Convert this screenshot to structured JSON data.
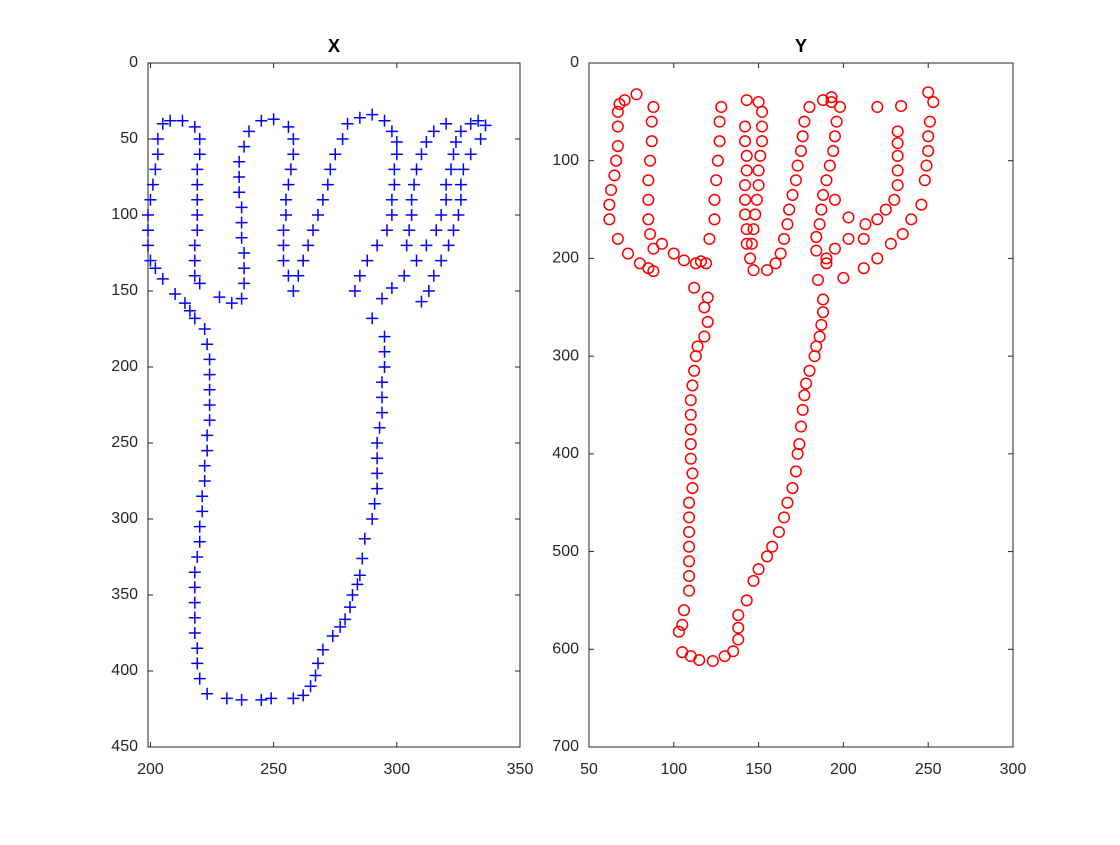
{
  "chart_data": [
    {
      "type": "scatter",
      "title": "X",
      "marker": "+",
      "color": "#0000ff",
      "y_reverse": true,
      "xlim": [
        199,
        350
      ],
      "xticks": [
        200,
        250,
        300,
        350
      ],
      "ylim": [
        0,
        450
      ],
      "yticks": [
        0,
        50,
        100,
        150,
        200,
        250,
        300,
        350,
        400,
        450
      ],
      "x": [
        223,
        231,
        237,
        245,
        249,
        258,
        262,
        265,
        267,
        268,
        270,
        274,
        277,
        279,
        281,
        282,
        284,
        285,
        286,
        287,
        290,
        291,
        292,
        292,
        292,
        292,
        293,
        294,
        294,
        294,
        295,
        295,
        295,
        290,
        283,
        285,
        288,
        292,
        296,
        298,
        298,
        299,
        299,
        300,
        300,
        298,
        295,
        290,
        285,
        280,
        278,
        275,
        273,
        272,
        270,
        268,
        266,
        264,
        262,
        260,
        258,
        256,
        254,
        254,
        254,
        255,
        255,
        256,
        257,
        258,
        258,
        256,
        250,
        245,
        240,
        238,
        236,
        236,
        236,
        237,
        237,
        237,
        238,
        238,
        238,
        237,
        233,
        228,
        220,
        218,
        218,
        218,
        219,
        219,
        219,
        219,
        219,
        220,
        220,
        218,
        213,
        208,
        205,
        203,
        203,
        202,
        201,
        200,
        199,
        199,
        199,
        200,
        202,
        205,
        210,
        214,
        216,
        218,
        222,
        223,
        224,
        224,
        224,
        224,
        224,
        223,
        223,
        222,
        222,
        221,
        221,
        220,
        220,
        219,
        218,
        218,
        218,
        218,
        218,
        219,
        219,
        220,
        294,
        298,
        303,
        308,
        312,
        316,
        318,
        320,
        320,
        322,
        323,
        324,
        326,
        330,
        333,
        336,
        334,
        330,
        327,
        326,
        326,
        325,
        323,
        321,
        318,
        315,
        313,
        310,
        306,
        306,
        307,
        308,
        310,
        312,
        315,
        320,
        305,
        304
      ],
      "values": [
        415,
        418,
        419,
        419,
        418,
        418,
        416,
        410,
        403,
        395,
        386,
        377,
        371,
        366,
        358,
        350,
        343,
        337,
        326,
        313,
        300,
        290,
        280,
        270,
        260,
        250,
        240,
        230,
        220,
        210,
        200,
        190,
        180,
        168,
        150,
        140,
        130,
        120,
        110,
        100,
        90,
        80,
        70,
        60,
        52,
        45,
        38,
        34,
        36,
        40,
        50,
        60,
        70,
        80,
        90,
        100,
        110,
        120,
        130,
        140,
        150,
        140,
        130,
        120,
        110,
        100,
        90,
        80,
        70,
        60,
        50,
        42,
        37,
        38,
        45,
        55,
        65,
        75,
        85,
        95,
        105,
        115,
        125,
        135,
        145,
        155,
        158,
        154,
        145,
        140,
        130,
        120,
        110,
        100,
        90,
        80,
        70,
        60,
        50,
        42,
        38,
        38,
        40,
        50,
        60,
        70,
        80,
        90,
        100,
        110,
        120,
        130,
        135,
        142,
        152,
        158,
        163,
        168,
        175,
        185,
        195,
        205,
        215,
        225,
        235,
        245,
        255,
        265,
        275,
        285,
        295,
        305,
        315,
        325,
        335,
        345,
        355,
        365,
        375,
        385,
        395,
        405,
        155,
        148,
        140,
        130,
        120,
        110,
        100,
        90,
        80,
        70,
        60,
        52,
        45,
        40,
        38,
        41,
        50,
        60,
        70,
        80,
        90,
        100,
        110,
        120,
        130,
        140,
        150,
        157,
        100,
        90,
        80,
        70,
        60,
        52,
        45,
        40,
        110,
        120
      ]
    },
    {
      "type": "scatter",
      "title": "Y",
      "marker": "o",
      "color": "#ff0000",
      "y_reverse": true,
      "xlim": [
        50,
        300
      ],
      "xticks": [
        50,
        100,
        150,
        200,
        250,
        300
      ],
      "ylim": [
        0,
        700
      ],
      "yticks": [
        0,
        100,
        200,
        300,
        400,
        500,
        600,
        700
      ],
      "x": [
        103,
        105,
        110,
        115,
        123,
        130,
        135,
        138,
        138,
        138,
        143,
        147,
        150,
        155,
        158,
        162,
        165,
        167,
        170,
        172,
        173,
        174,
        175,
        176,
        177,
        178,
        180,
        183,
        184,
        186,
        187,
        188,
        188,
        185,
        190,
        195,
        203,
        213,
        220,
        225,
        230,
        232,
        232,
        232,
        232,
        232,
        234,
        250,
        253,
        251,
        250,
        250,
        249,
        248,
        246,
        240,
        235,
        228,
        220,
        212,
        200,
        190,
        184,
        184,
        186,
        187,
        188,
        190,
        192,
        194,
        195,
        196,
        198,
        193,
        188,
        180,
        177,
        176,
        175,
        173,
        172,
        170,
        168,
        167,
        165,
        163,
        160,
        155,
        147,
        145,
        143,
        143,
        142,
        142,
        142,
        143,
        143,
        142,
        142,
        143,
        150,
        152,
        152,
        152,
        151,
        150,
        150,
        149,
        148,
        147,
        146,
        128,
        127,
        127,
        126,
        125,
        124,
        124,
        121,
        119,
        113,
        106,
        100,
        93,
        88,
        86,
        85,
        85,
        85,
        86,
        87,
        87,
        88,
        78,
        71,
        68,
        67,
        67,
        67,
        66,
        65,
        63,
        62,
        62,
        67,
        73,
        80,
        85,
        88,
        118,
        120,
        118,
        114,
        113,
        112,
        111,
        110,
        110,
        110,
        110,
        110,
        111,
        111,
        109,
        109,
        109,
        109,
        109,
        109,
        109,
        106,
        105,
        120,
        112,
        116,
        220,
        203,
        212,
        193,
        195
      ],
      "values": [
        582,
        603,
        607,
        611,
        612,
        607,
        602,
        590,
        578,
        565,
        550,
        530,
        518,
        505,
        495,
        480,
        465,
        450,
        435,
        418,
        400,
        390,
        372,
        355,
        340,
        328,
        315,
        300,
        290,
        280,
        268,
        255,
        242,
        222,
        205,
        190,
        180,
        165,
        160,
        150,
        140,
        125,
        110,
        95,
        82,
        70,
        44,
        30,
        40,
        60,
        75,
        90,
        105,
        120,
        145,
        160,
        175,
        185,
        200,
        210,
        220,
        200,
        192,
        178,
        165,
        150,
        135,
        120,
        105,
        90,
        75,
        60,
        45,
        35,
        38,
        45,
        60,
        75,
        90,
        105,
        120,
        135,
        150,
        165,
        180,
        195,
        205,
        212,
        212,
        200,
        185,
        170,
        155,
        140,
        125,
        110,
        95,
        80,
        65,
        38,
        40,
        50,
        65,
        80,
        95,
        110,
        125,
        140,
        155,
        170,
        185,
        45,
        60,
        80,
        100,
        120,
        140,
        160,
        180,
        205,
        205,
        202,
        195,
        185,
        190,
        175,
        160,
        140,
        120,
        100,
        80,
        60,
        45,
        32,
        38,
        42,
        50,
        65,
        85,
        100,
        115,
        130,
        145,
        160,
        180,
        195,
        205,
        210,
        213,
        250,
        265,
        280,
        290,
        300,
        315,
        330,
        345,
        360,
        375,
        390,
        405,
        420,
        435,
        450,
        465,
        480,
        495,
        510,
        525,
        540,
        560,
        575,
        240,
        230,
        203,
        45,
        158,
        180,
        40,
        140
      ]
    }
  ]
}
